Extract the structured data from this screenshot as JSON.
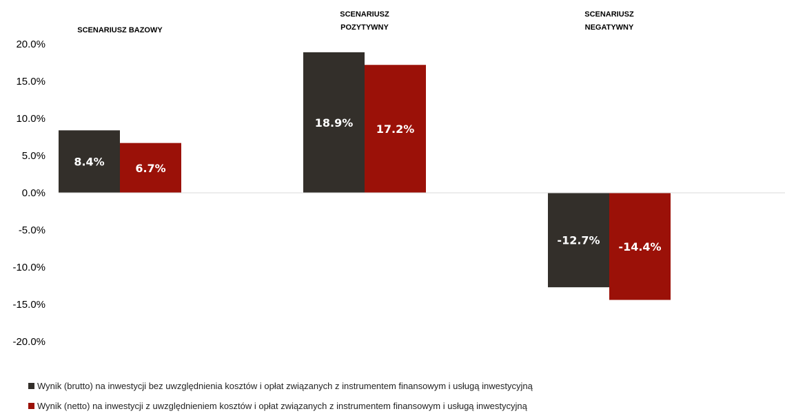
{
  "chart_data": {
    "type": "bar",
    "categories": [
      "SCENARIUSZ BAZOWY",
      "SCENARIUSZ POZYTYWNY",
      "SCENARIUSZ NEGATYWNY"
    ],
    "category_label_lines": [
      [
        "SCENARIUSZ BAZOWY"
      ],
      [
        "SCENARIUSZ",
        "POZYTYWNY"
      ],
      [
        "SCENARIUSZ",
        "NEGATYWNY"
      ]
    ],
    "series": [
      {
        "name": "Wynik (brutto) na inwestycji bez uwzględnienia kosztów i opłat związanych z instrumentem finansowym i usługą inwestycyjną",
        "values": [
          8.4,
          18.9,
          -12.7
        ],
        "labels": [
          "8.4%",
          "18.9%",
          "-12.7%"
        ],
        "color": "#332f2a"
      },
      {
        "name": "Wynik (netto) na inwestycji z uwzględnieniem kosztów i opłat związanych z instrumentem finansowym i usługą inwestycyjną",
        "values": [
          6.7,
          17.2,
          -14.4
        ],
        "labels": [
          "6.7%",
          "17.2%",
          "-14.4%"
        ],
        "color": "#9b1108"
      }
    ],
    "ylim": [
      -20,
      20
    ],
    "yticks": [
      20,
      15,
      10,
      5,
      0,
      -5,
      -10,
      -15,
      -20
    ],
    "ytick_labels": [
      "20.0%",
      "15.0%",
      "10.0%",
      "5.0%",
      "0.0%",
      "-5.0%",
      "-10.0%",
      "-15.0%",
      "-20.0%"
    ],
    "grid": false,
    "legend_position": "bottom",
    "category_labels_position": "top"
  }
}
